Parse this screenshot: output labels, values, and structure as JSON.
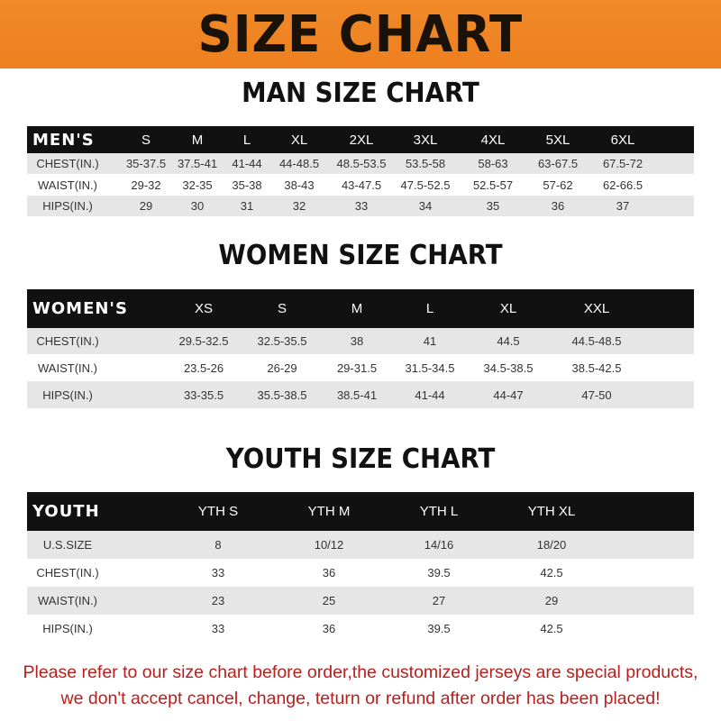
{
  "banner": {
    "title": "SIZE CHART",
    "color": "#ee7f1e"
  },
  "men": {
    "title": "MAN SIZE CHART",
    "header": [
      "MEN'S",
      "S",
      "M",
      "L",
      "XL",
      "2XL",
      "3XL",
      "4XL",
      "5XL",
      "6XL"
    ],
    "rows": [
      [
        "CHEST(IN.)",
        "35-37.5",
        "37.5-41",
        "41-44",
        "44-48.5",
        "48.5-53.5",
        "53.5-58",
        "58-63",
        "63-67.5",
        "67.5-72"
      ],
      [
        "WAIST(IN.)",
        "29-32",
        "32-35",
        "35-38",
        "38-43",
        "43-47.5",
        "47.5-52.5",
        "52.5-57",
        "57-62",
        "62-66.5"
      ],
      [
        "HIPS(IN.)",
        "29",
        "30",
        "31",
        "32",
        "33",
        "34",
        "35",
        "36",
        "37"
      ]
    ]
  },
  "women": {
    "title": "WOMEN SIZE CHART",
    "header": [
      "WOMEN'S",
      "XS",
      "S",
      "M",
      "L",
      "XL",
      "XXL"
    ],
    "rows": [
      [
        "CHEST(IN.)",
        "29.5-32.5",
        "32.5-35.5",
        "38",
        "41",
        "44.5",
        "44.5-48.5"
      ],
      [
        "WAIST(IN.)",
        "23.5-26",
        "26-29",
        "29-31.5",
        "31.5-34.5",
        "34.5-38.5",
        "38.5-42.5"
      ],
      [
        "HIPS(IN.)",
        "33-35.5",
        "35.5-38.5",
        "38.5-41",
        "41-44",
        "44-47",
        "47-50"
      ]
    ]
  },
  "youth": {
    "title": "YOUTH SIZE CHART",
    "header": [
      "YOUTH",
      "YTH S",
      "YTH M",
      "YTH L",
      "YTH XL"
    ],
    "rows": [
      [
        "U.S.SIZE",
        "8",
        "10/12",
        "14/16",
        "18/20"
      ],
      [
        "CHEST(IN.)",
        "33",
        "36",
        "39.5",
        "42.5"
      ],
      [
        "WAIST(IN.)",
        "23",
        "25",
        "27",
        "29"
      ],
      [
        "HIPS(IN.)",
        "33",
        "36",
        "39.5",
        "42.5"
      ]
    ]
  },
  "footer": {
    "line1": "Please refer to our size chart before order,the customized jerseys are special products,",
    "line2": "we don't accept cancel, change, teturn or refund after order has been placed!",
    "color": "#b8201e"
  }
}
